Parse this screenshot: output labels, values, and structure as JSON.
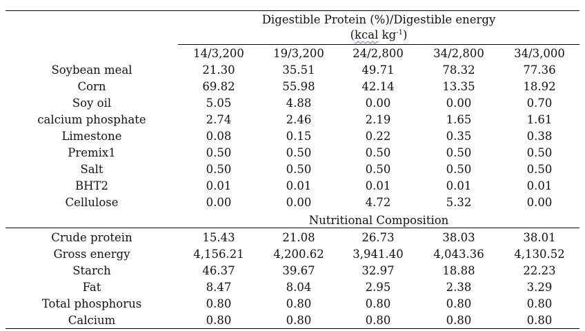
{
  "header": {
    "spanner_line1": "Digestible Protein (%)/Digestible energy",
    "spanner_open": "(",
    "spanner_kcal": "kcal",
    "spanner_kg": " kg",
    "spanner_exp": "-1",
    "spanner_close": ")",
    "columns": [
      "14/3,200",
      "19/3,200",
      "24/2,800",
      "34/2,800",
      "34/3,000"
    ]
  },
  "ingredients": [
    {
      "label": "Soybean meal",
      "values": [
        "21.30",
        "35.51",
        "49.71",
        "78.32",
        "77.36"
      ]
    },
    {
      "label": "Corn",
      "values": [
        "69.82",
        "55.98",
        "42.14",
        "13.35",
        "18.92"
      ]
    },
    {
      "label": "Soy oil",
      "values": [
        "5.05",
        "4.88",
        "0.00",
        "0.00",
        "0.70"
      ]
    },
    {
      "label": "calcium phosphate",
      "values": [
        "2.74",
        "2.46",
        "2.19",
        "1.65",
        "1.61"
      ]
    },
    {
      "label": "Limestone",
      "values": [
        "0.08",
        "0.15",
        "0.22",
        "0.35",
        "0.38"
      ]
    },
    {
      "label": "Premix1",
      "values": [
        "0.50",
        "0.50",
        "0.50",
        "0.50",
        "0.50"
      ]
    },
    {
      "label": "Salt",
      "values": [
        "0.50",
        "0.50",
        "0.50",
        "0.50",
        "0.50"
      ]
    },
    {
      "label": "BHT2",
      "values": [
        "0.01",
        "0.01",
        "0.01",
        "0.01",
        "0.01"
      ]
    },
    {
      "label": "Cellulose",
      "values": [
        "0.00",
        "0.00",
        "4.72",
        "5.32",
        "0.00"
      ]
    }
  ],
  "composition_title": "Nutritional Composition",
  "composition": [
    {
      "label": "Crude protein",
      "values": [
        "15.43",
        "21.08",
        "26.73",
        "38.03",
        "38.01"
      ]
    },
    {
      "label": "Gross energy",
      "values": [
        "4,156.21",
        "4,200.62",
        "3,941.40",
        "4,043.36",
        "4,130.52"
      ]
    },
    {
      "label": "Starch",
      "values": [
        "46.37",
        "39.67",
        "32.97",
        "18.88",
        "22.23"
      ]
    },
    {
      "label": "Fat",
      "values": [
        "8.47",
        "8.04",
        "2.95",
        "2.38",
        "3.29"
      ]
    },
    {
      "label": "Total phosphorus",
      "values": [
        "0.80",
        "0.80",
        "0.80",
        "0.80",
        "0.80"
      ]
    },
    {
      "label": "Calcium",
      "values": [
        "0.80",
        "0.80",
        "0.80",
        "0.80",
        "0.80"
      ]
    }
  ]
}
